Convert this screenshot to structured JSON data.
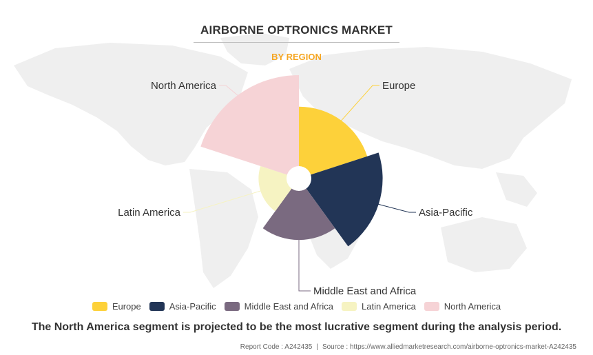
{
  "chart_data": {
    "type": "polar-area",
    "title": "AIRBORNE OPTRONICS MARKET",
    "subtitle": "BY REGION",
    "categories": [
      "Europe",
      "Asia-Pacific",
      "Middle East and Africa",
      "Latin America",
      "North America"
    ],
    "values": [
      8.5,
      10.2,
      7.0,
      4.0,
      13.0
    ],
    "colors": [
      "#FDD13A",
      "#223556",
      "#7A6A80",
      "#F6F3C2",
      "#F6D3D6"
    ],
    "legend_position": "bottom-center"
  },
  "headline": "The North America segment is projected to be the most lucrative segment during the analysis period.",
  "footer": {
    "report_code": "Report Code : A242435",
    "source": "Source : https://www.alliedmarketresearch.com/airborne-optronics-market-A242435"
  },
  "colors": {
    "subtitle": "#F5A623",
    "map": "#EFEFEF",
    "title_text": "#333333"
  }
}
